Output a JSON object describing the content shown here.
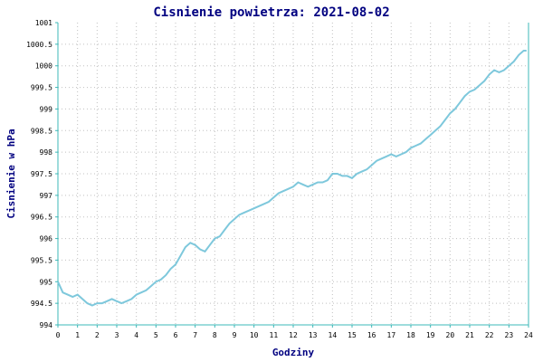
{
  "chart_data": {
    "type": "line",
    "title": "Cisnienie powietrza: 2021-08-02",
    "xlabel": "Godziny",
    "ylabel": "Cisnienie w hPa",
    "xlim": [
      0,
      24
    ],
    "ylim": [
      994,
      1001
    ],
    "x_ticks": [
      "0",
      "1",
      "2",
      "3",
      "4",
      "5",
      "6",
      "7",
      "8",
      "9",
      "10",
      "11",
      "12",
      "13",
      "14",
      "15",
      "16",
      "17",
      "18",
      "19",
      "20",
      "21",
      "22",
      "23",
      "24"
    ],
    "y_ticks": [
      "994",
      "994.5",
      "995",
      "995.5",
      "996",
      "996.5",
      "997",
      "997.5",
      "998",
      "998.5",
      "999",
      "999.5",
      "1000",
      "1000.5",
      "1001"
    ],
    "grid": true,
    "colors": {
      "line": "#7ec8dc",
      "axis": "#3cb8b8",
      "grid": "#c0c0c0",
      "text": "#000080"
    },
    "series": [
      {
        "x": [
          0,
          0.25,
          0.5,
          0.75,
          1,
          1.25,
          1.5,
          1.75,
          2,
          2.25,
          2.5,
          2.75,
          3,
          3.25,
          3.5,
          3.75,
          4,
          4.25,
          4.5,
          4.75,
          5,
          5.25,
          5.5,
          5.75,
          6,
          6.25,
          6.5,
          6.75,
          7,
          7.25,
          7.5,
          7.75,
          8,
          8.25,
          8.5,
          8.75,
          9,
          9.25,
          9.5,
          9.75,
          10,
          10.25,
          10.5,
          10.75,
          11,
          11.25,
          11.5,
          11.75,
          12,
          12.25,
          12.5,
          12.75,
          13,
          13.25,
          13.5,
          13.75,
          14,
          14.25,
          14.5,
          14.75,
          15,
          15.25,
          15.5,
          15.75,
          16,
          16.25,
          16.5,
          16.75,
          17,
          17.25,
          17.5,
          17.75,
          18,
          18.25,
          18.5,
          18.75,
          19,
          19.25,
          19.5,
          19.75,
          20,
          20.25,
          20.5,
          20.75,
          21,
          21.25,
          21.5,
          21.75,
          22,
          22.25,
          22.5,
          22.75,
          23,
          23.25,
          23.5,
          23.75,
          23.9
        ],
        "values": [
          995.0,
          994.75,
          994.7,
          994.65,
          994.7,
          994.6,
          994.5,
          994.45,
          994.5,
          994.5,
          994.55,
          994.6,
          994.55,
          994.5,
          994.55,
          994.6,
          994.7,
          994.75,
          994.8,
          994.9,
          995.0,
          995.05,
          995.15,
          995.3,
          995.4,
          995.6,
          995.8,
          995.9,
          995.85,
          995.75,
          995.7,
          995.85,
          996.0,
          996.05,
          996.2,
          996.35,
          996.45,
          996.55,
          996.6,
          996.65,
          996.7,
          996.75,
          996.8,
          996.85,
          996.95,
          997.05,
          997.1,
          997.15,
          997.2,
          997.3,
          997.25,
          997.2,
          997.25,
          997.3,
          997.3,
          997.35,
          997.5,
          997.5,
          997.45,
          997.45,
          997.4,
          997.5,
          997.55,
          997.6,
          997.7,
          997.8,
          997.85,
          997.9,
          997.95,
          997.9,
          997.95,
          998.0,
          998.1,
          998.15,
          998.2,
          998.3,
          998.4,
          998.5,
          998.6,
          998.75,
          998.9,
          999.0,
          999.15,
          999.3,
          999.4,
          999.45,
          999.55,
          999.65,
          999.8,
          999.9,
          999.85,
          999.9,
          1000.0,
          1000.1,
          1000.25,
          1000.35,
          1000.35
        ]
      }
    ]
  }
}
